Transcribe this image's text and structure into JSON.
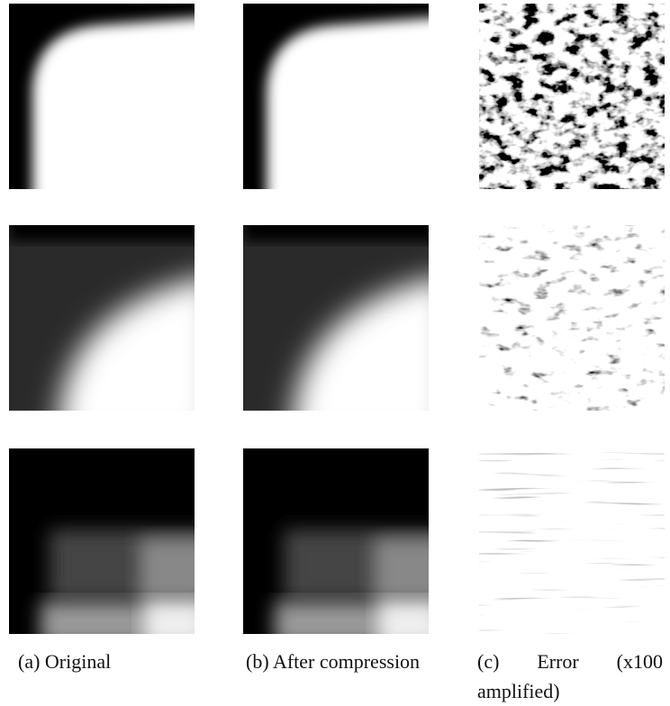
{
  "figure": {
    "panels": [
      {
        "caption": "(a) Original"
      },
      {
        "caption": "(b) After compression"
      },
      {
        "caption": "(c) Error (x100 amplified)"
      }
    ]
  }
}
